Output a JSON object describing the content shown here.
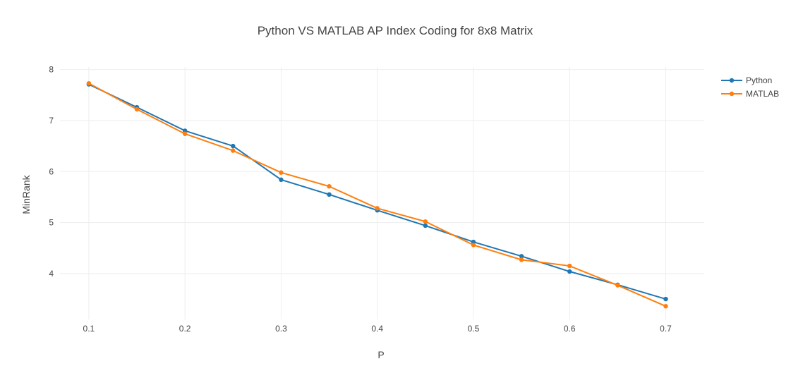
{
  "chart_data": {
    "type": "line",
    "title": "Python VS MATLAB AP Index Coding for 8x8 Matrix",
    "xlabel": "P",
    "ylabel": "MinRank",
    "x": [
      0.1,
      0.15,
      0.2,
      0.25,
      0.3,
      0.35,
      0.4,
      0.45,
      0.5,
      0.55,
      0.6,
      0.65,
      0.7
    ],
    "xlim": [
      0.07,
      0.74
    ],
    "ylim": [
      3.1,
      8.05
    ],
    "xticks": [
      "0.1",
      "0.2",
      "0.3",
      "0.4",
      "0.5",
      "0.6",
      "0.7"
    ],
    "yticks": [
      "4",
      "5",
      "6",
      "7",
      "8"
    ],
    "grid": true,
    "legend_position": "top-right",
    "series": [
      {
        "name": "Python",
        "color": "#1f77b4",
        "values": [
          7.71,
          7.26,
          6.8,
          6.5,
          5.84,
          5.55,
          5.24,
          4.94,
          4.62,
          4.34,
          4.04,
          3.78,
          3.5
        ]
      },
      {
        "name": "MATLAB",
        "color": "#ff7f0e",
        "values": [
          7.73,
          7.22,
          6.74,
          6.41,
          5.98,
          5.71,
          5.28,
          5.02,
          4.56,
          4.27,
          4.15,
          3.77,
          3.36
        ]
      }
    ]
  }
}
